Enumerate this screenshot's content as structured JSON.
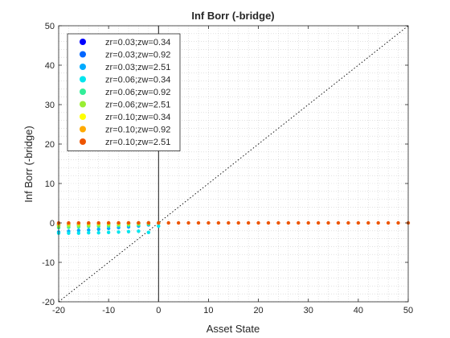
{
  "chart_data": {
    "type": "scatter",
    "title": "Inf Borr (-bridge)",
    "xlabel": "Asset State",
    "ylabel": "Inf Borr (-bridge)",
    "xlim": [
      -20,
      50
    ],
    "ylim": [
      -20,
      50
    ],
    "xticks": [
      -20,
      -10,
      0,
      10,
      20,
      30,
      40,
      50
    ],
    "yticks": [
      -20,
      -10,
      0,
      10,
      20,
      30,
      40,
      50
    ],
    "grid": "minor-dotted",
    "legend_position": "top-left",
    "reference_lines": [
      {
        "name": "45-degree line",
        "style": "dotted",
        "points": [
          [
            -20,
            -20
          ],
          [
            50,
            50
          ]
        ]
      },
      {
        "name": "zero line",
        "style": "solid",
        "points": [
          [
            0,
            -20
          ],
          [
            0,
            50
          ]
        ]
      }
    ],
    "series": [
      {
        "name": "zr=0.03;zw=0.34",
        "color": "#0000ff",
        "points": [
          [
            -20,
            -0.4
          ],
          [
            -18,
            -0.35
          ],
          [
            -16,
            -0.3
          ],
          [
            -14,
            -0.25
          ],
          [
            -12,
            -0.2
          ],
          [
            -10,
            -0.15
          ],
          [
            -8,
            -0.1
          ],
          [
            -6,
            -0.05
          ],
          [
            -4,
            0
          ],
          [
            -2,
            0
          ],
          [
            0,
            0
          ]
        ]
      },
      {
        "name": "zr=0.03;zw=0.92",
        "color": "#0066ff",
        "points": [
          [
            -20,
            -0.6
          ],
          [
            -18,
            -0.5
          ],
          [
            -16,
            -0.45
          ],
          [
            -14,
            -0.4
          ],
          [
            -12,
            -0.3
          ],
          [
            -10,
            -0.25
          ],
          [
            -8,
            -0.2
          ],
          [
            -6,
            -0.1
          ],
          [
            -4,
            -0.05
          ],
          [
            -2,
            0
          ],
          [
            0,
            0
          ]
        ]
      },
      {
        "name": "zr=0.03;zw=2.51",
        "color": "#00aaff",
        "points": [
          [
            -20,
            -2.3
          ],
          [
            -18,
            -2.1
          ],
          [
            -16,
            -1.9
          ],
          [
            -14,
            -1.8
          ],
          [
            -12,
            -1.6
          ],
          [
            -10,
            -1.4
          ],
          [
            -8,
            -1.2
          ],
          [
            -6,
            -1.0
          ],
          [
            -4,
            -0.8
          ],
          [
            -2,
            -0.5
          ],
          [
            0,
            0
          ]
        ]
      },
      {
        "name": "zr=0.06;zw=0.34",
        "color": "#00e5ee",
        "points": [
          [
            -20,
            -2.6
          ],
          [
            -18,
            -2.6
          ],
          [
            -16,
            -2.6
          ],
          [
            -14,
            -2.5
          ],
          [
            -12,
            -2.5
          ],
          [
            -10,
            -2.4
          ],
          [
            -8,
            -2.3
          ],
          [
            -6,
            -2.2
          ],
          [
            -4,
            -2.1
          ],
          [
            -2,
            -2.4
          ],
          [
            0,
            -0.8
          ]
        ]
      },
      {
        "name": "zr=0.06;zw=0.92",
        "color": "#33ee99",
        "points": [
          [
            -20,
            -1.2
          ],
          [
            -18,
            -1.1
          ],
          [
            -16,
            -1.0
          ],
          [
            -14,
            -0.9
          ],
          [
            -12,
            -0.85
          ],
          [
            -10,
            -0.8
          ],
          [
            -8,
            -0.7
          ],
          [
            -6,
            -0.6
          ],
          [
            -4,
            -0.5
          ],
          [
            -2,
            -0.3
          ],
          [
            0,
            0
          ]
        ]
      },
      {
        "name": "zr=0.06;zw=2.51",
        "color": "#99ee33",
        "points": [
          [
            -20,
            -0.8
          ],
          [
            -18,
            -0.7
          ],
          [
            -16,
            -0.65
          ],
          [
            -14,
            -0.6
          ],
          [
            -12,
            -0.5
          ],
          [
            -10,
            -0.45
          ],
          [
            -8,
            -0.4
          ],
          [
            -6,
            -0.3
          ],
          [
            -4,
            -0.2
          ],
          [
            -2,
            -0.1
          ],
          [
            0,
            0
          ]
        ]
      },
      {
        "name": "zr=0.10;zw=0.34",
        "color": "#ffff00",
        "points": [
          [
            -20,
            -0.3
          ],
          [
            -18,
            -0.25
          ],
          [
            -16,
            -0.2
          ],
          [
            -14,
            -0.2
          ],
          [
            -12,
            -0.15
          ],
          [
            -10,
            -0.1
          ],
          [
            -8,
            -0.1
          ],
          [
            -6,
            -0.05
          ],
          [
            -4,
            0
          ],
          [
            -2,
            0
          ],
          [
            0,
            0
          ]
        ]
      },
      {
        "name": "zr=0.10;zw=0.92",
        "color": "#ffaa00",
        "points": [
          [
            -20,
            -0.2
          ],
          [
            -18,
            -0.15
          ],
          [
            -16,
            -0.1
          ],
          [
            -14,
            -0.1
          ],
          [
            -12,
            -0.05
          ],
          [
            -10,
            0
          ],
          [
            -8,
            0
          ],
          [
            -6,
            0
          ],
          [
            -4,
            0
          ],
          [
            -2,
            0
          ],
          [
            0,
            0
          ]
        ]
      },
      {
        "name": "zr=0.10;zw=2.51",
        "color": "#ee5500",
        "points": [
          [
            -20,
            0
          ],
          [
            -18,
            0
          ],
          [
            -16,
            0
          ],
          [
            -14,
            0
          ],
          [
            -12,
            0
          ],
          [
            -10,
            0
          ],
          [
            -8,
            0
          ],
          [
            -6,
            0
          ],
          [
            -4,
            0
          ],
          [
            -2,
            0
          ],
          [
            0,
            0
          ],
          [
            2,
            0
          ],
          [
            4,
            0
          ],
          [
            6,
            0
          ],
          [
            8,
            0
          ],
          [
            10,
            0
          ],
          [
            12,
            0
          ],
          [
            14,
            0
          ],
          [
            16,
            0
          ],
          [
            18,
            0
          ],
          [
            20,
            0
          ],
          [
            22,
            0
          ],
          [
            24,
            0
          ],
          [
            26,
            0
          ],
          [
            28,
            0
          ],
          [
            30,
            0
          ],
          [
            32,
            0
          ],
          [
            34,
            0
          ],
          [
            36,
            0
          ],
          [
            38,
            0
          ],
          [
            40,
            0
          ],
          [
            42,
            0
          ],
          [
            44,
            0
          ],
          [
            46,
            0
          ],
          [
            48,
            0
          ],
          [
            50,
            0
          ]
        ]
      }
    ]
  }
}
